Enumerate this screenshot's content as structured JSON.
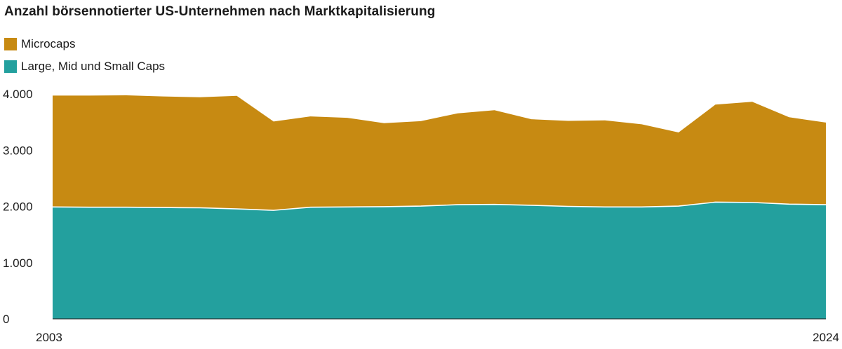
{
  "chart_data": {
    "type": "area",
    "stacked": true,
    "title": "Anzahl börsennotierter US-Unternehmen nach Marktkapitalisierung",
    "xlabel": "",
    "ylabel": "",
    "x": [
      2003,
      2004,
      2005,
      2006,
      2007,
      2008,
      2009,
      2010,
      2011,
      2012,
      2013,
      2014,
      2015,
      2016,
      2017,
      2018,
      2019,
      2020,
      2021,
      2022,
      2023,
      2024
    ],
    "x_tick_labels": [
      "2003",
      "2024"
    ],
    "ylim": [
      0,
      4000
    ],
    "y_ticks": [
      0,
      1000,
      2000,
      3000,
      4000
    ],
    "y_tick_labels": [
      "0",
      "1.000",
      "2.000",
      "3.000",
      "4.000"
    ],
    "series": [
      {
        "name": "Large, Mid und Small Caps",
        "color": "#23a09e",
        "values": [
          1990,
          1985,
          1985,
          1980,
          1975,
          1955,
          1930,
          1985,
          1990,
          1995,
          2005,
          2030,
          2035,
          2020,
          2000,
          1990,
          1990,
          2005,
          2075,
          2070,
          2040,
          2030
        ]
      },
      {
        "name": "Microcaps",
        "color": "#c78a12",
        "values": [
          1980,
          1985,
          1990,
          1975,
          1965,
          2010,
          1580,
          1615,
          1585,
          1485,
          1510,
          1625,
          1675,
          1530,
          1520,
          1540,
          1470,
          1310,
          1735,
          1790,
          1545,
          1460
        ]
      }
    ],
    "legend_position": "top-left",
    "grid": false
  }
}
